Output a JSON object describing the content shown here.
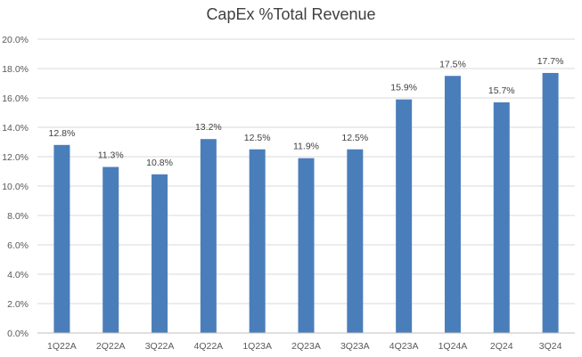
{
  "chart_data": {
    "type": "bar",
    "title": "CapEx %Total Revenue",
    "xlabel": "",
    "ylabel": "",
    "categories": [
      "1Q22A",
      "2Q22A",
      "3Q22A",
      "4Q22A",
      "1Q23A",
      "2Q23A",
      "3Q23A",
      "4Q23A",
      "1Q24A",
      "2Q24",
      "3Q24"
    ],
    "values": [
      12.8,
      11.3,
      10.8,
      13.2,
      12.5,
      11.9,
      12.5,
      15.9,
      17.5,
      15.7,
      17.7
    ],
    "data_labels": [
      "12.8%",
      "11.3%",
      "10.8%",
      "13.2%",
      "12.5%",
      "11.9%",
      "12.5%",
      "15.9%",
      "17.5%",
      "15.7%",
      "17.7%"
    ],
    "ylim": [
      0,
      20
    ],
    "y_ticks": [
      0,
      2,
      4,
      6,
      8,
      10,
      12,
      14,
      16,
      18,
      20
    ],
    "y_tick_labels": [
      "0.0%",
      "2.0%",
      "4.0%",
      "6.0%",
      "8.0%",
      "10.0%",
      "12.0%",
      "14.0%",
      "16.0%",
      "18.0%",
      "20.0%"
    ],
    "grid": true,
    "legend": "none",
    "colors": {
      "bar": "#4a7ebb",
      "grid": "#d9d9d9",
      "axis": "#bfbfbf"
    }
  }
}
